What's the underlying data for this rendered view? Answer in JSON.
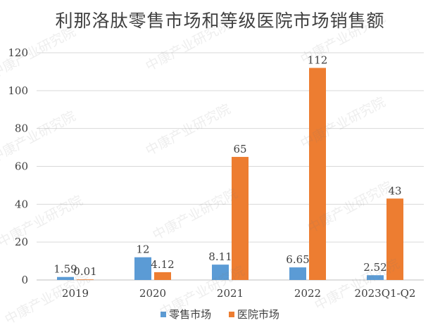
{
  "watermark": "中康产业研究院",
  "chart_data": {
    "type": "bar",
    "title": "利那洛肽零售市场和等级医院市场销售额",
    "categories": [
      "2019",
      "2020",
      "2021",
      "2022",
      "2023Q1-Q2"
    ],
    "series": [
      {
        "name": "零售市场",
        "values": [
          1.59,
          12,
          8.11,
          6.65,
          2.52
        ],
        "labels": [
          "1.59",
          "12",
          "8.11",
          "6.65",
          "2.52"
        ],
        "color": "#5B9BD5"
      },
      {
        "name": "医院市场",
        "values": [
          0.01,
          4.12,
          65,
          112,
          43
        ],
        "labels": [
          "0.01",
          "4.12",
          "65",
          "112",
          "43"
        ],
        "color": "#ED7D31"
      }
    ],
    "ylim": [
      0,
      120
    ],
    "yticks": [
      "0",
      "20",
      "40",
      "60",
      "80",
      "100",
      "120"
    ],
    "xlabel": "",
    "ylabel": "",
    "grid": true,
    "legend": "bottom"
  }
}
